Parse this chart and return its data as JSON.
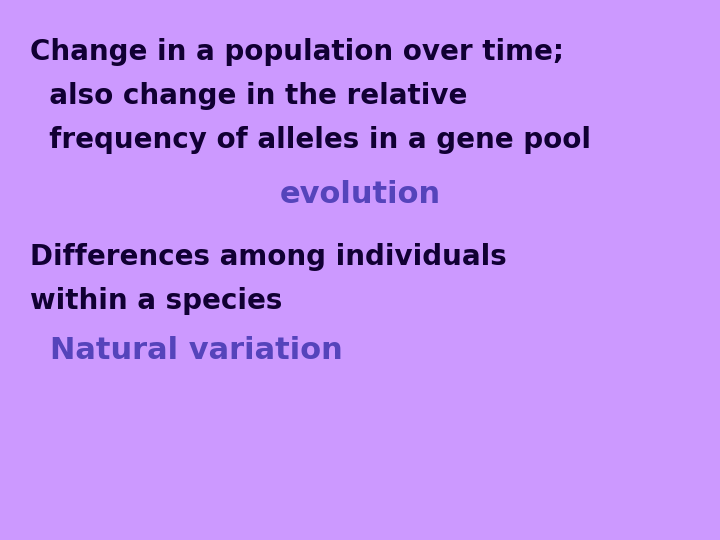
{
  "background_color": "#CC99FF",
  "line1": "Change in a population over time;",
  "line2": "  also change in the relative",
  "line3": "  frequency of alleles in a gene pool",
  "answer1": "evolution",
  "answer1_color": "#5544BB",
  "line4": "Differences among individuals",
  "line5": "within a species",
  "answer2": "Natural variation",
  "answer2_color": "#5544BB",
  "dark_color": "#110033",
  "fontsize_question": 20,
  "fontsize_answer": 22,
  "fontfamily": "Comic Sans MS"
}
